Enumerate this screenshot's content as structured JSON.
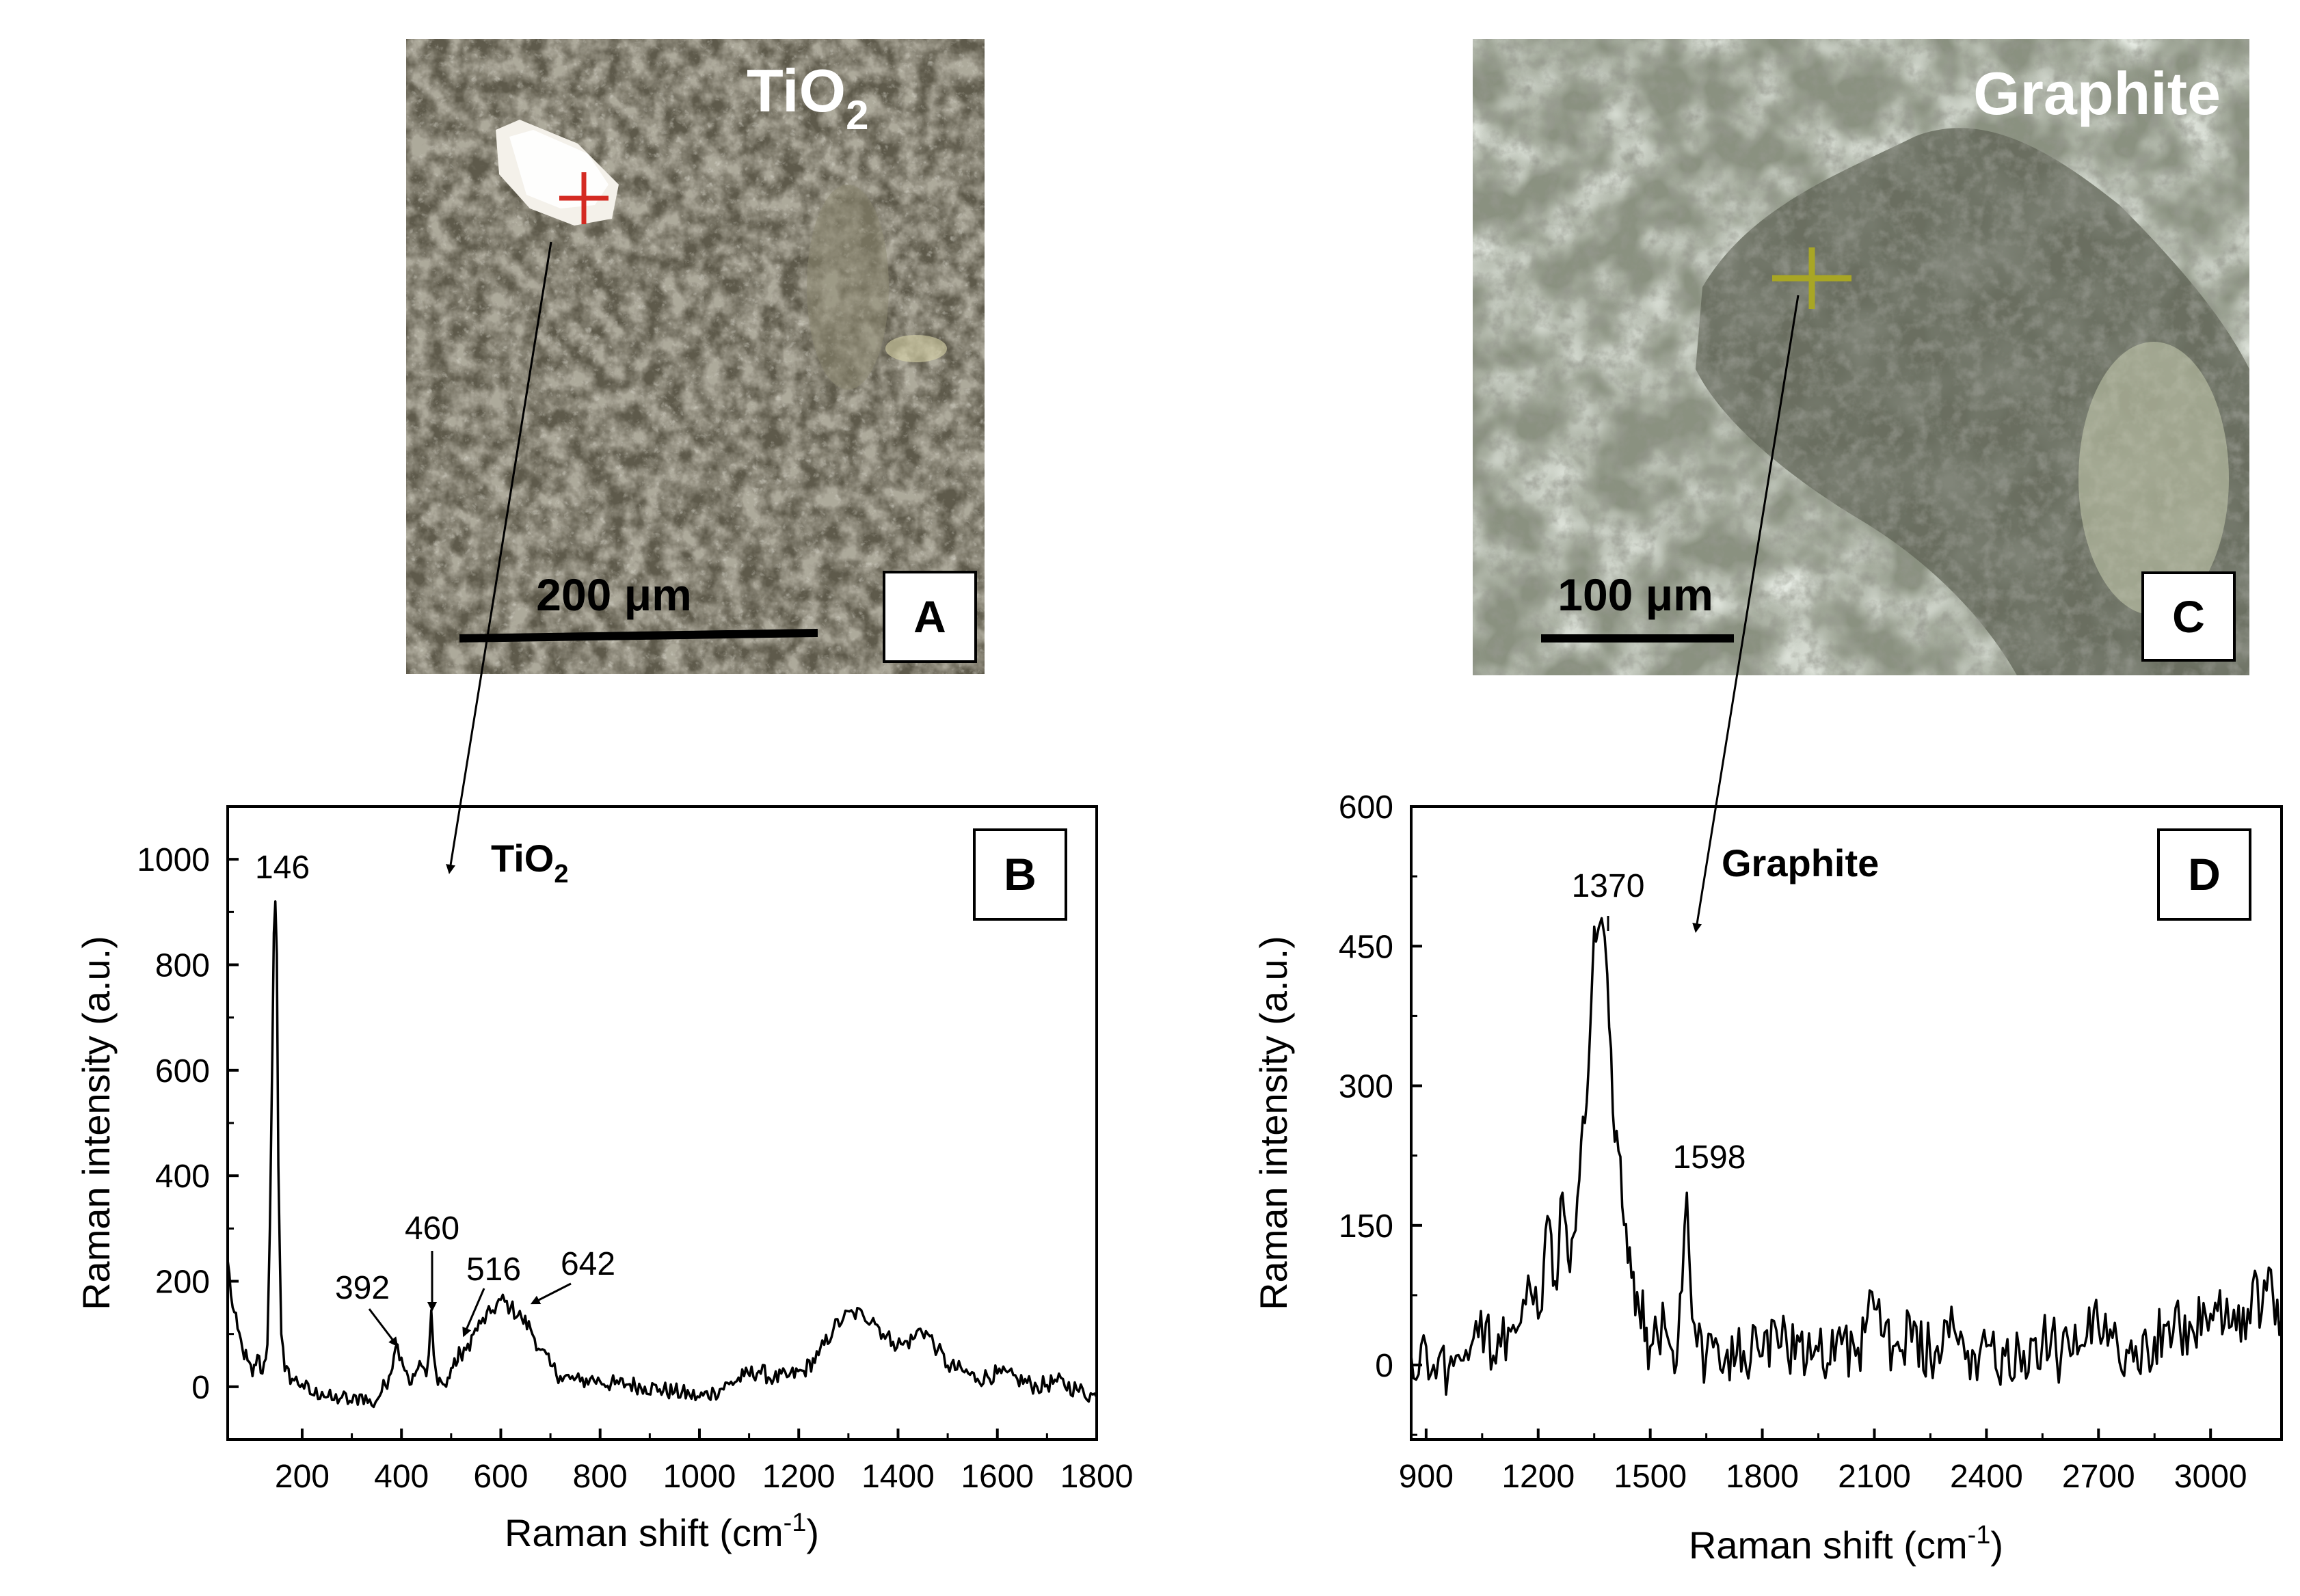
{
  "micrographs": {
    "A": {
      "title_main": "TiO",
      "title_sub": "2",
      "scale_bar": "200 μm",
      "label": "A",
      "cross_color": "#d42a22",
      "bg_color": "#5e5a4b"
    },
    "C": {
      "title_main": "Graphite",
      "scale_bar": "100 μm",
      "label": "C",
      "cross_color": "#a8a624",
      "bg_color": "#8a9180"
    }
  },
  "chart_data": [
    {
      "panel": "B",
      "type": "line",
      "title": "",
      "species_main": "TiO",
      "species_sub": "2",
      "xlabel": "Raman shift (cm",
      "xlabel_sup": "-1",
      "xlabel_close": ")",
      "ylabel": "Raman intensity (a.u.)",
      "xlim": [
        50,
        1800
      ],
      "ylim": [
        -100,
        1100
      ],
      "xticks": [
        "200",
        "400",
        "600",
        "800",
        "1000",
        "1200",
        "1400",
        "1600",
        "1800"
      ],
      "yticks": [
        "0",
        "200",
        "400",
        "600",
        "800",
        "1000"
      ],
      "peak_labels": [
        "146",
        "392",
        "460",
        "516",
        "642"
      ],
      "peak_positions": [
        146,
        392,
        460,
        516,
        642
      ],
      "series": [
        {
          "x": [
            50,
            60,
            70,
            80,
            90,
            100,
            110,
            120,
            130,
            135,
            140,
            143,
            146,
            149,
            152,
            158,
            165,
            180,
            200,
            220,
            240,
            260,
            280,
            300,
            320,
            340,
            360,
            375,
            385,
            392,
            400,
            410,
            420,
            430,
            440,
            450,
            455,
            460,
            465,
            470,
            480,
            490,
            500,
            510,
            516,
            522,
            530,
            545,
            560,
            580,
            600,
            620,
            642,
            660,
            680,
            700,
            720,
            740,
            760,
            780,
            800,
            830,
            860,
            890,
            920,
            950,
            980,
            1000,
            1030,
            1060,
            1090,
            1120,
            1150,
            1180,
            1210,
            1240,
            1270,
            1290,
            1310,
            1330,
            1350,
            1370,
            1390,
            1410,
            1430,
            1445,
            1460,
            1480,
            1500,
            1530,
            1560,
            1600,
            1640,
            1680,
            1720,
            1760,
            1800
          ],
          "values": [
            240,
            150,
            110,
            70,
            50,
            20,
            60,
            25,
            80,
            300,
            640,
            860,
            920,
            820,
            420,
            100,
            30,
            15,
            5,
            -15,
            -10,
            -25,
            -20,
            -30,
            -15,
            -35,
            -10,
            20,
            60,
            80,
            55,
            30,
            5,
            30,
            40,
            20,
            60,
            145,
            60,
            25,
            10,
            0,
            35,
            40,
            75,
            50,
            70,
            100,
            120,
            140,
            165,
            150,
            130,
            110,
            70,
            40,
            20,
            15,
            10,
            15,
            10,
            5,
            5,
            0,
            -5,
            -10,
            -15,
            -20,
            -10,
            5,
            20,
            30,
            15,
            20,
            30,
            60,
            110,
            130,
            140,
            135,
            130,
            100,
            85,
            80,
            90,
            110,
            100,
            70,
            40,
            30,
            15,
            25,
            15,
            0,
            10,
            -5,
            -20
          ]
        }
      ]
    },
    {
      "panel": "D",
      "type": "line",
      "title": "",
      "species_main": "Graphite",
      "xlabel": "Raman shift (cm",
      "xlabel_sup": "-1",
      "xlabel_close": ")",
      "ylabel": "Raman intensity (a.u.)",
      "xlim": [
        860,
        3190
      ],
      "ylim": [
        -80,
        600
      ],
      "xticks": [
        "900",
        "1200",
        "1500",
        "1800",
        "2100",
        "2400",
        "2700",
        "3000"
      ],
      "yticks": [
        "0",
        "150",
        "300",
        "450",
        "600"
      ],
      "peak_labels": [
        "1370",
        "1598"
      ],
      "peak_positions": [
        1370,
        1598
      ],
      "series": [
        {
          "x": [
            860,
            880,
            900,
            920,
            940,
            960,
            980,
            1000,
            1020,
            1040,
            1060,
            1080,
            1100,
            1120,
            1140,
            1160,
            1180,
            1200,
            1215,
            1225,
            1235,
            1245,
            1255,
            1265,
            1275,
            1285,
            1295,
            1305,
            1315,
            1325,
            1335,
            1345,
            1355,
            1362,
            1370,
            1378,
            1385,
            1395,
            1405,
            1415,
            1425,
            1440,
            1455,
            1470,
            1480,
            1490,
            1500,
            1520,
            1540,
            1560,
            1575,
            1585,
            1592,
            1598,
            1604,
            1612,
            1625,
            1650,
            1700,
            1750,
            1800,
            1850,
            1900,
            1950,
            2000,
            2050,
            2100,
            2150,
            2200,
            2250,
            2300,
            2350,
            2400,
            2450,
            2500,
            2550,
            2600,
            2650,
            2700,
            2750,
            2800,
            2850,
            2900,
            2950,
            3000,
            3050,
            3100,
            3150,
            3190
          ],
          "values": [
            10,
            -10,
            20,
            0,
            15,
            -5,
            10,
            5,
            20,
            30,
            45,
            10,
            20,
            40,
            35,
            70,
            80,
            50,
            110,
            160,
            140,
            90,
            120,
            185,
            150,
            100,
            140,
            180,
            240,
            260,
            320,
            420,
            455,
            470,
            480,
            460,
            420,
            340,
            240,
            230,
            170,
            110,
            100,
            60,
            80,
            40,
            20,
            30,
            40,
            15,
            30,
            80,
            150,
            185,
            120,
            50,
            20,
            10,
            5,
            15,
            10,
            20,
            25,
            15,
            30,
            10,
            60,
            20,
            25,
            10,
            30,
            15,
            20,
            10,
            15,
            25,
            10,
            20,
            40,
            25,
            20,
            30,
            35,
            40,
            55,
            40,
            60,
            80,
            50
          ]
        }
      ]
    }
  ]
}
